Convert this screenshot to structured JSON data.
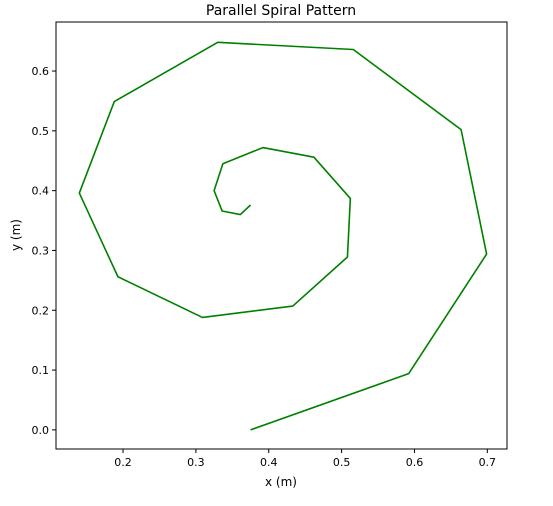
{
  "chart_data": {
    "type": "line",
    "title": "Parallel Spiral Pattern",
    "xlabel": "x (m)",
    "ylabel": "y (m)",
    "xlim": [
      0.108,
      0.727
    ],
    "ylim": [
      -0.032,
      0.682
    ],
    "xticks": [
      0.2,
      0.3,
      0.4,
      0.5,
      0.6,
      0.7
    ],
    "xtick_labels": [
      "0.2",
      "0.3",
      "0.4",
      "0.5",
      "0.6",
      "0.7"
    ],
    "yticks": [
      0.0,
      0.1,
      0.2,
      0.3,
      0.4,
      0.5,
      0.6
    ],
    "ytick_labels": [
      "0.0",
      "0.1",
      "0.2",
      "0.3",
      "0.4",
      "0.5",
      "0.6"
    ],
    "grid": false,
    "legend": "none",
    "series": [
      {
        "color": "#008000",
        "x": [
          0.375,
          0.592,
          0.699,
          0.664,
          0.516,
          0.33,
          0.188,
          0.14,
          0.193,
          0.309,
          0.433,
          0.508,
          0.512,
          0.462,
          0.392,
          0.337,
          0.325,
          0.336,
          0.361,
          0.375
        ],
        "y": [
          0.0,
          0.094,
          0.294,
          0.502,
          0.636,
          0.648,
          0.549,
          0.396,
          0.256,
          0.188,
          0.207,
          0.289,
          0.387,
          0.456,
          0.472,
          0.445,
          0.4,
          0.366,
          0.36,
          0.376
        ]
      }
    ]
  }
}
